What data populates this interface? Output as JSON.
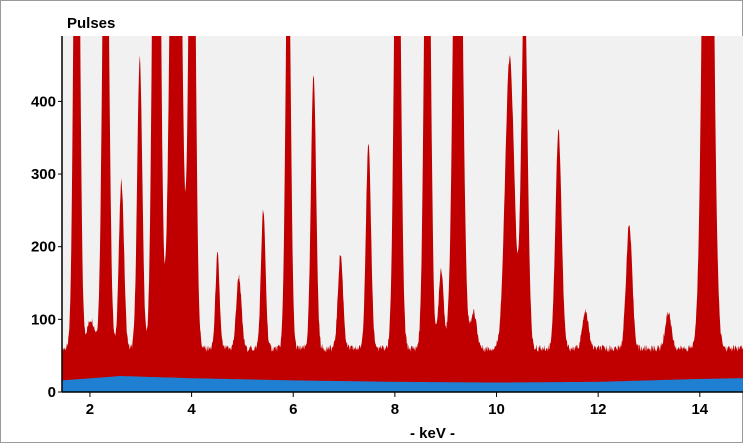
{
  "chart_data": {
    "type": "area",
    "title": "",
    "ylabel": "Pulses",
    "xlabel": "- keV -",
    "xlim": [
      1.45,
      14.85
    ],
    "ylim": [
      0,
      490
    ],
    "x_ticks": [
      2,
      4,
      6,
      8,
      10,
      12,
      14
    ],
    "y_ticks": [
      0,
      100,
      200,
      300,
      400
    ],
    "grid": false,
    "legend": "none",
    "colors": {
      "spectrum": "#c00000",
      "background": "#1f7fd0",
      "plot_bg": "#f1f1f1"
    },
    "series": [
      {
        "role": "spectrum",
        "baseline": 60,
        "peaks": [
          {
            "x": 1.74,
            "y": 950,
            "w": 0.055
          },
          {
            "x": 2.02,
            "y": 40,
            "w": 0.08
          },
          {
            "x": 2.31,
            "y": 800,
            "w": 0.06
          },
          {
            "x": 2.62,
            "y": 230,
            "w": 0.05
          },
          {
            "x": 2.98,
            "y": 400,
            "w": 0.05
          },
          {
            "x": 3.31,
            "y": 1200,
            "w": 0.065
          },
          {
            "x": 3.69,
            "y": 1200,
            "w": 0.09
          },
          {
            "x": 4.01,
            "y": 900,
            "w": 0.06
          },
          {
            "x": 4.51,
            "y": 130,
            "w": 0.04
          },
          {
            "x": 4.93,
            "y": 100,
            "w": 0.05
          },
          {
            "x": 5.41,
            "y": 190,
            "w": 0.045
          },
          {
            "x": 5.9,
            "y": 600,
            "w": 0.05
          },
          {
            "x": 6.4,
            "y": 380,
            "w": 0.05
          },
          {
            "x": 6.93,
            "y": 130,
            "w": 0.05
          },
          {
            "x": 7.48,
            "y": 280,
            "w": 0.05
          },
          {
            "x": 8.05,
            "y": 800,
            "w": 0.06
          },
          {
            "x": 8.64,
            "y": 800,
            "w": 0.06
          },
          {
            "x": 8.91,
            "y": 110,
            "w": 0.05
          },
          {
            "x": 9.24,
            "y": 950,
            "w": 0.08
          },
          {
            "x": 9.55,
            "y": 50,
            "w": 0.06
          },
          {
            "x": 10.26,
            "y": 400,
            "w": 0.09
          },
          {
            "x": 10.55,
            "y": 500,
            "w": 0.06
          },
          {
            "x": 11.22,
            "y": 300,
            "w": 0.06
          },
          {
            "x": 11.75,
            "y": 50,
            "w": 0.06
          },
          {
            "x": 12.61,
            "y": 170,
            "w": 0.06
          },
          {
            "x": 13.38,
            "y": 50,
            "w": 0.06
          },
          {
            "x": 14.16,
            "y": 1200,
            "w": 0.09
          }
        ]
      },
      {
        "role": "background",
        "points": [
          [
            1.45,
            16
          ],
          [
            2.6,
            22
          ],
          [
            4.0,
            19
          ],
          [
            6.0,
            16
          ],
          [
            8.0,
            14
          ],
          [
            10.0,
            13
          ],
          [
            12.0,
            14
          ],
          [
            14.0,
            18
          ],
          [
            14.85,
            19
          ]
        ]
      }
    ]
  }
}
